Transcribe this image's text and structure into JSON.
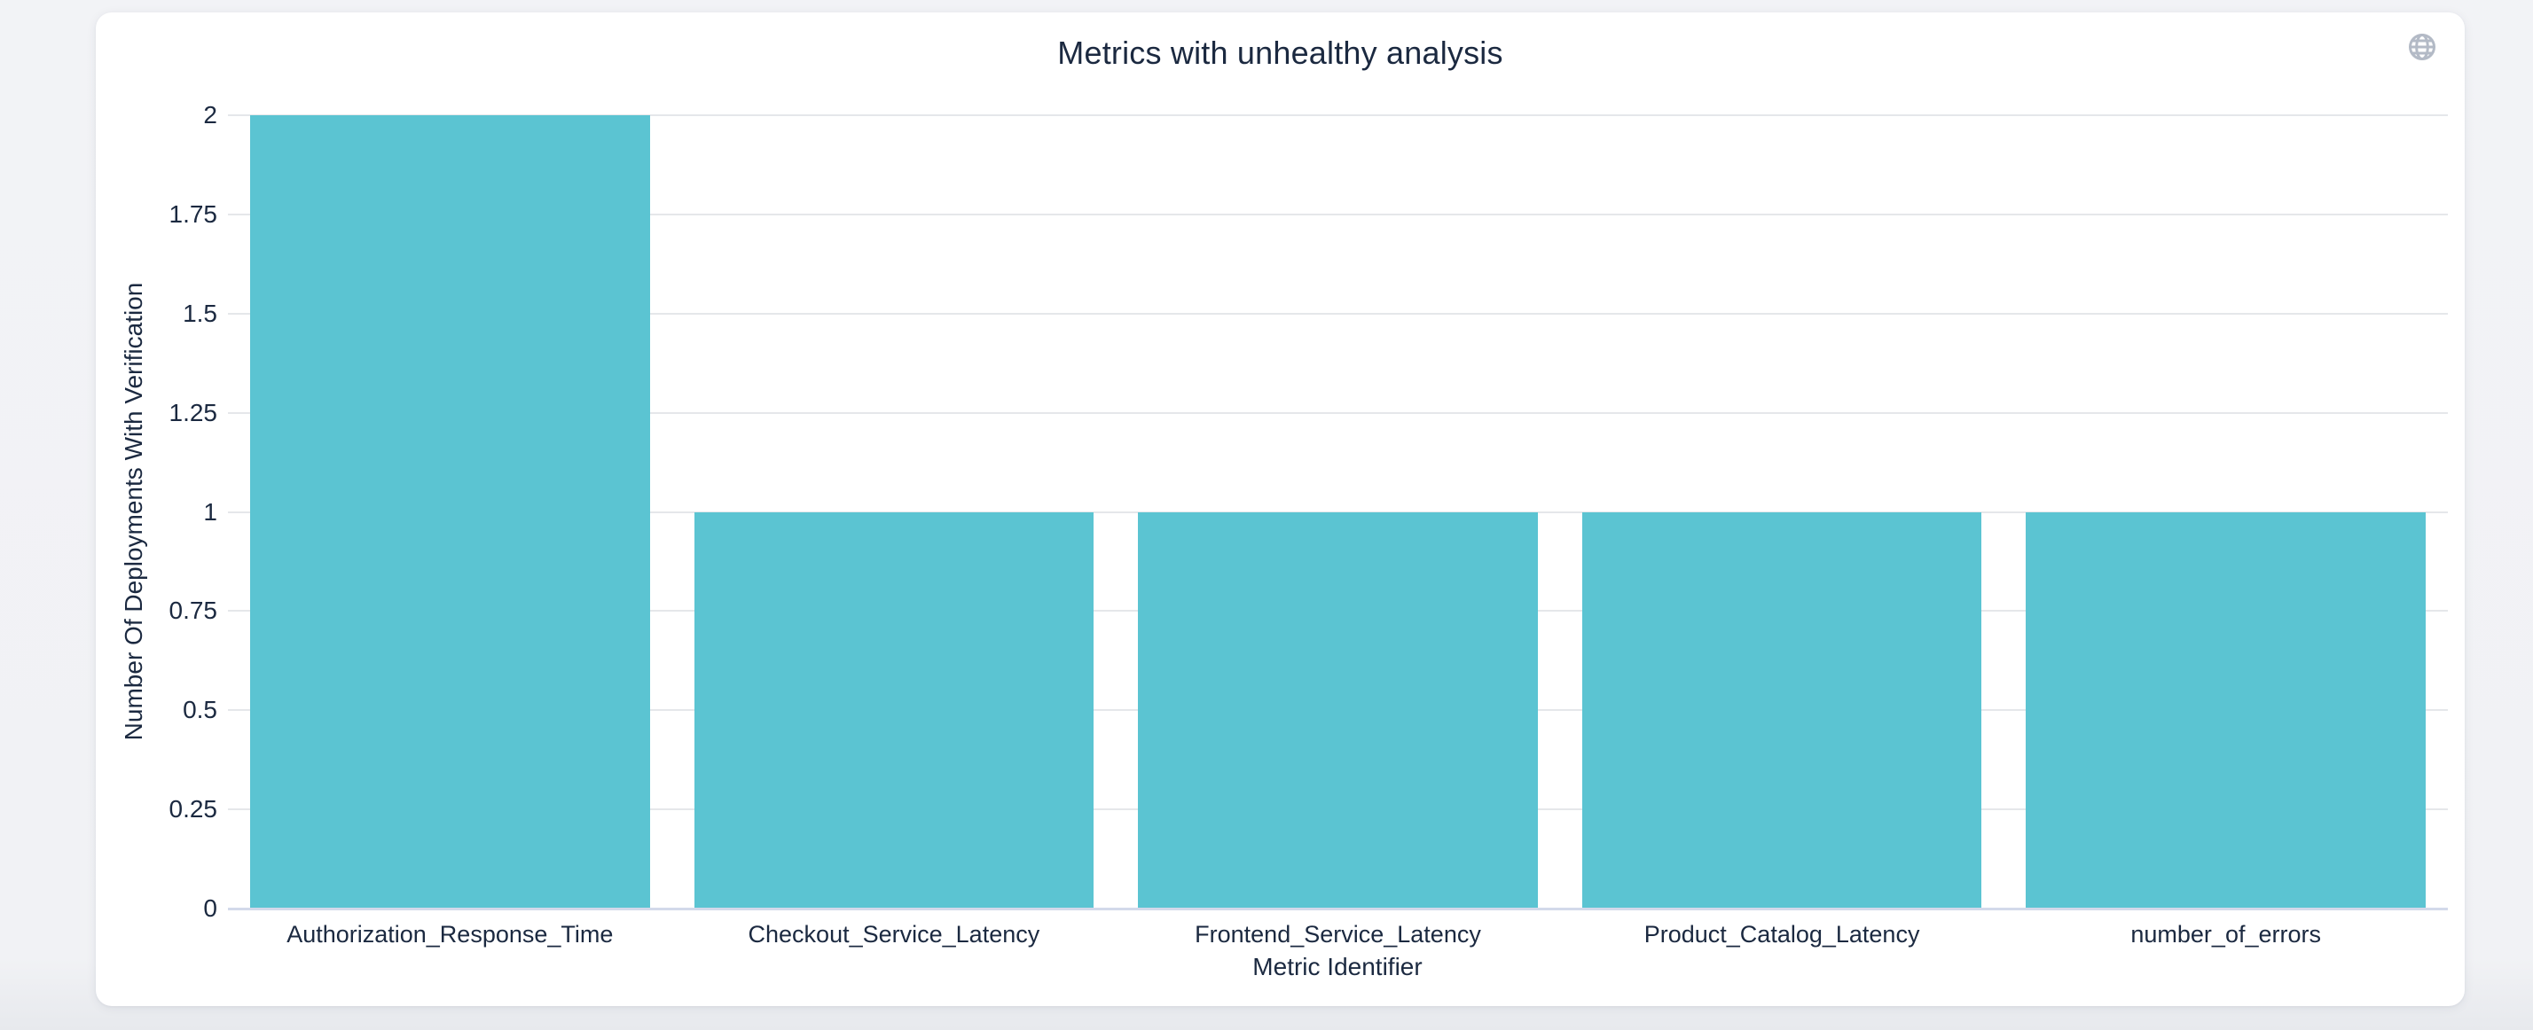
{
  "page": {
    "background_color": "#f1f3f6"
  },
  "card": {
    "background_color": "#ffffff"
  },
  "icons": {
    "top_right": "globe-icon"
  },
  "chart_data": {
    "type": "bar",
    "title": "Metrics with unhealthy analysis",
    "categories": [
      "Authorization_Response_Time",
      "Checkout_Service_Latency",
      "Frontend_Service_Latency",
      "Product_Catalog_Latency",
      "number_of_errors"
    ],
    "values": [
      2,
      1,
      1,
      1,
      1
    ],
    "xlabel": "Metric Identifier",
    "ylabel": "Number Of Deployments With Verification",
    "ylim": [
      0,
      2
    ],
    "yticks": [
      "0",
      "0.25",
      "0.5",
      "0.75",
      "1",
      "1.25",
      "1.5",
      "1.75",
      "2"
    ],
    "grid": true,
    "legend_position": "none",
    "bar_gap_ratio": 0.1,
    "colors": {
      "bar": "#5bc4d2",
      "grid_line": "#e5e7ea",
      "axis_line": "#d3d9ea",
      "text": "#1b2940",
      "icon": "#b3bac6"
    }
  }
}
